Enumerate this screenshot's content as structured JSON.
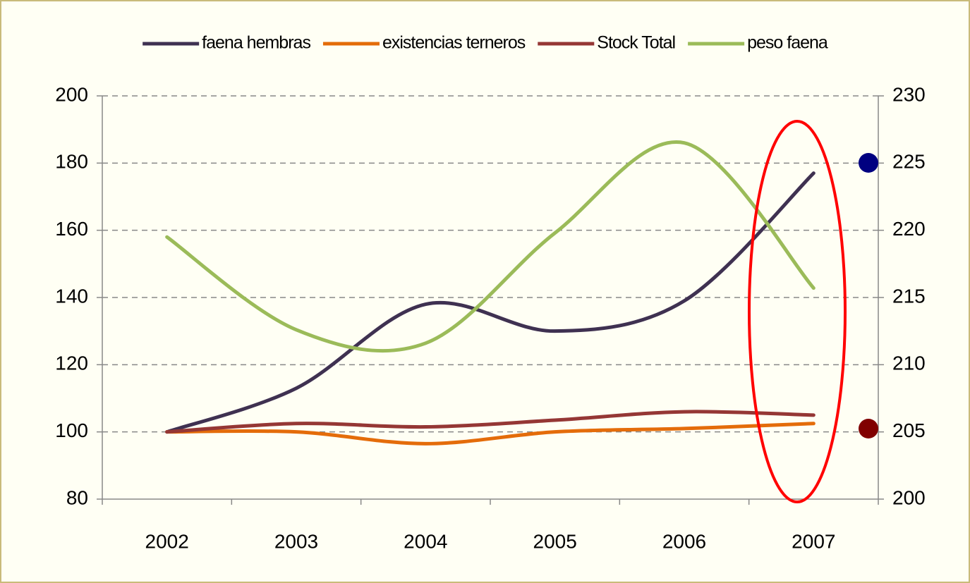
{
  "chart_data": {
    "type": "line",
    "categories": [
      "2002",
      "2003",
      "2004",
      "2005",
      "2006",
      "2007"
    ],
    "series": [
      {
        "name": "faena hembras",
        "color": "#3f3151",
        "values": [
          100,
          113,
          138,
          130,
          139,
          177
        ]
      },
      {
        "name": "existencias terneros",
        "color": "#e46c0a",
        "values": [
          100,
          100,
          96.5,
          100,
          101,
          102.5
        ]
      },
      {
        "name": "Stock Total",
        "color": "#953735",
        "values": [
          100,
          102.5,
          101.5,
          103.5,
          106,
          105
        ]
      },
      {
        "name": "peso faena",
        "color": "#9bbb59",
        "axis": "y2",
        "values": [
          219.5,
          212.6,
          211.6,
          219.8,
          226.5,
          215.7
        ]
      }
    ],
    "ylim": [
      80,
      200
    ],
    "yticks": [
      80,
      100,
      120,
      140,
      160,
      180,
      200
    ],
    "y2lim": [
      200,
      230
    ],
    "y2ticks": [
      200,
      205,
      210,
      215,
      220,
      225,
      230
    ],
    "grid": true,
    "legend": "top"
  }
}
